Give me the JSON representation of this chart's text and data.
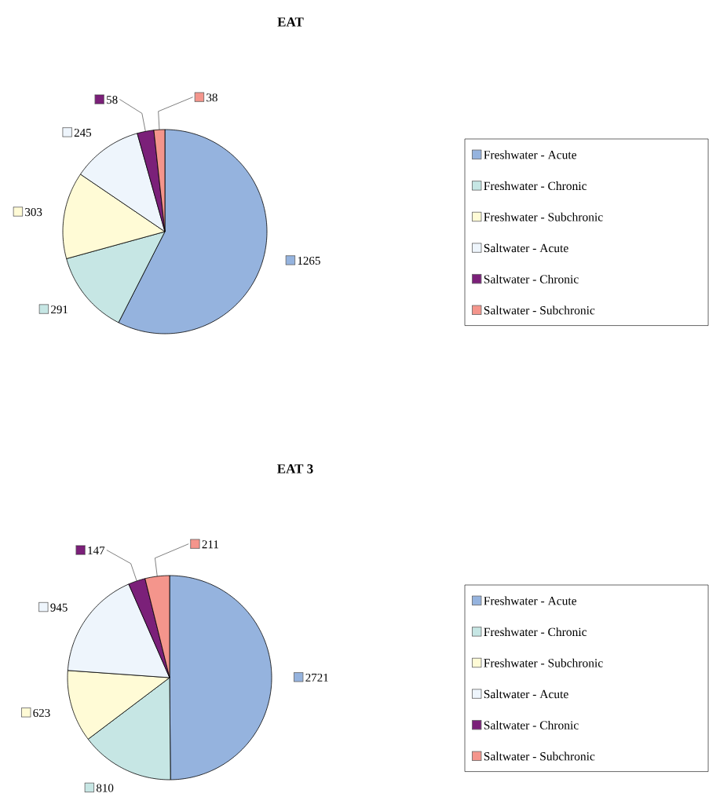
{
  "chart_data": [
    {
      "type": "pie",
      "title": "EAT",
      "categories": [
        "Freshwater - Acute",
        "Freshwater - Chronic",
        "Freshwater - Subchronic",
        "Saltwater - Acute",
        "Saltwater - Chronic",
        "Saltwater - Subchronic"
      ],
      "values": [
        1265,
        291,
        303,
        245,
        58,
        38
      ],
      "colors": [
        "#95b3de",
        "#c6e6e4",
        "#fffbd6",
        "#eef5fc",
        "#7b2079",
        "#f4958c"
      ],
      "data_labels": true,
      "legend": "right"
    },
    {
      "type": "pie",
      "title": "EAT 3",
      "categories": [
        "Freshwater - Acute",
        "Freshwater - Chronic",
        "Freshwater - Subchronic",
        "Saltwater - Acute",
        "Saltwater - Chronic",
        "Saltwater - Subchronic"
      ],
      "values": [
        2721,
        810,
        623,
        945,
        147,
        211
      ],
      "colors": [
        "#95b3de",
        "#c6e6e4",
        "#fffbd6",
        "#eef5fc",
        "#7b2079",
        "#f4958c"
      ],
      "data_labels": true,
      "legend": "right"
    }
  ]
}
